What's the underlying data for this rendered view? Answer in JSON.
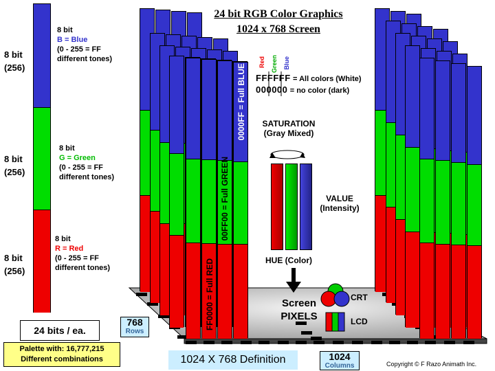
{
  "title": {
    "line1": "24 bit RGB Color Graphics",
    "line2": "1024 x 768 Screen"
  },
  "left_channels": [
    {
      "bits": "8 bit",
      "range": "(256)",
      "title": "8 bit",
      "name": "B = Blue",
      "desc1": "(0 - 255 = FF",
      "desc2": "different tones)",
      "color": "#3333cc"
    },
    {
      "bits": "8 bit",
      "range": "(256)",
      "title": "8 bit",
      "name": "G = Green",
      "desc1": "(0 - 255 = FF",
      "desc2": "different tones)",
      "color": "#00dd00"
    },
    {
      "bits": "8 bit",
      "range": "(256)",
      "title": "8 bit",
      "name": "R = Red",
      "desc1": "(0 - 255 = FF",
      "desc2": "different tones)",
      "color": "#ee0000"
    }
  ],
  "bits_per_pixel": "24 bits / ea.",
  "palette": {
    "line1": "Palette with:  16,777,215",
    "line2": "Different combinations"
  },
  "rows_box": {
    "value": "768",
    "label": "Rows"
  },
  "columns_box": {
    "value": "1024",
    "label": "Columns"
  },
  "definition": "1024 X 768 Definition",
  "copyright": "Copyright © F Razo Animath Inc.",
  "hex_legend": {
    "channels": [
      "Red",
      "Green",
      "Blue"
    ],
    "white_code": "FFFFFF",
    "white_desc": "= All colors (White)",
    "black_code": "000000",
    "black_desc": "= no color (dark)"
  },
  "column_labels": {
    "blue": "0000FF = Full BLUE",
    "green": "00FF00 = Full GREEN",
    "red": "FF0000 = Full RED"
  },
  "saturation": {
    "title": "SATURATION",
    "subtitle": "(Gray Mixed)"
  },
  "value_label": {
    "title": "VALUE",
    "subtitle": "(Intensity)"
  },
  "hue_label": "HUE (Color)",
  "screen_pixels": {
    "line1": "Screen",
    "line2": "PIXELS"
  },
  "crt_label": "CRT",
  "lcd_label": "LCD",
  "colors": {
    "red": "#ee0000",
    "green": "#00dd00",
    "blue": "#3333cc",
    "floor": "#c8c8c8",
    "palette_bg": "#ffff88",
    "info_bg": "#cceeff"
  }
}
